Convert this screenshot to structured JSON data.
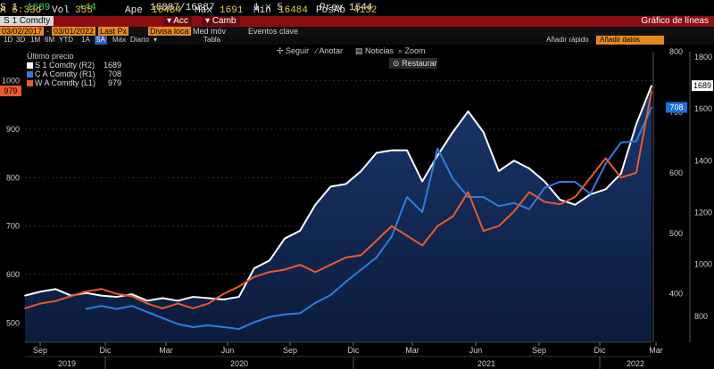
{
  "header": {
    "line1_fragments": [
      "S 1",
      "1689",
      "+44",
      "16887/16887",
      "1 x 5",
      "Prev 1644"
    ],
    "ticker_code": "A 6:33d",
    "vol_label": "Vol",
    "vol_value": "355",
    "open_label": "Ape",
    "open_value": "16484",
    "high_label": "Máx",
    "high_value": "1691",
    "low_label": "Mín",
    "low_value": "16484",
    "posab_label": "PosAb",
    "posab_value": "4132"
  },
  "toolbar_red": {
    "ticker": "S 1 Comdty",
    "acc_label": "Acc",
    "camb_label": "Camb",
    "title": "Gráfico de líneas"
  },
  "date_row": {
    "start": "03/02/2017",
    "end": "03/01/2022",
    "last_px": "Last Px",
    "divisa": "Divisa loca",
    "med_mov": "Med móv",
    "eventos": "Eventos clave"
  },
  "period_row": {
    "periods": [
      "1D",
      "3D",
      "1M",
      "6M",
      "YTD",
      "1A",
      "5A",
      "Máx"
    ],
    "selected": "5A",
    "frequency": "Diario",
    "tabla": "Tabla",
    "quick_add": "Añadir rápido",
    "quick_add_value": "Añadir datos"
  },
  "chart_tools": {
    "follow": "Seguir",
    "annotate": "Anotar",
    "news": "Noticias",
    "zoom": "Zoom",
    "restore": "Restaurar"
  },
  "legend": {
    "title": "Último precio",
    "items": [
      {
        "name": "S 1 Comdty (R2)",
        "value": "1689",
        "color": "#ffffff"
      },
      {
        "name": "C A Comdty (R1)",
        "value": "708",
        "color": "#2f7de1"
      },
      {
        "name": "W A Comdty (L1)",
        "value": "979",
        "color": "#ea5a2b"
      }
    ]
  },
  "chart_data": {
    "type": "line",
    "title": "Gráfico de líneas",
    "x_tick_labels": [
      "Sep",
      "Dic",
      "Mar",
      "Jun",
      "Sep",
      "Dic",
      "Mar",
      "Jun",
      "Sep",
      "Dic",
      "Mar"
    ],
    "year_labels": [
      "2019",
      "2020",
      "2021",
      "2022"
    ],
    "left_axis": {
      "ticks": [
        500,
        600,
        700,
        800,
        900,
        1000
      ],
      "range": [
        460,
        1060
      ],
      "badge": "979",
      "badge_color": "#ea5a2b"
    },
    "right_axis_1": {
      "ticks": [
        400,
        500,
        600,
        700,
        800
      ],
      "range": [
        320,
        800
      ],
      "badge": "708",
      "badge_color": "#1e6fe0"
    },
    "right_axis_2": {
      "ticks": [
        800,
        1000,
        1200,
        1400,
        1600,
        1800
      ],
      "range": [
        700,
        1820
      ],
      "badge": "1689",
      "badge_color": "#ffffff"
    },
    "x_range": [
      0,
      41
    ],
    "series": [
      {
        "name": "S 1 Comdty (R2)",
        "axis": "R2",
        "color": "#ffffff",
        "x": [
          0,
          1,
          2,
          3,
          4,
          5,
          6,
          7,
          8,
          9,
          10,
          11,
          12,
          13,
          14,
          15,
          16,
          17,
          18,
          19,
          20,
          21,
          22,
          23,
          24,
          25,
          26,
          27,
          28,
          29,
          30,
          31,
          32,
          33,
          34,
          35,
          36,
          37,
          38,
          39,
          40,
          41
        ],
        "values": [
          880,
          895,
          905,
          880,
          890,
          880,
          875,
          885,
          860,
          870,
          860,
          875,
          870,
          865,
          875,
          985,
          1015,
          1100,
          1130,
          1230,
          1300,
          1310,
          1360,
          1430,
          1440,
          1440,
          1320,
          1420,
          1510,
          1590,
          1510,
          1360,
          1400,
          1370,
          1320,
          1250,
          1230,
          1270,
          1290,
          1350,
          1540,
          1689
        ]
      },
      {
        "name": "C A Comdty (R1)",
        "axis": "R1",
        "color": "#2f7de1",
        "x": [
          4,
          5,
          6,
          7,
          8,
          9,
          10,
          11,
          12,
          13,
          14,
          15,
          16,
          17,
          18,
          19,
          20,
          21,
          22,
          23,
          24,
          25,
          26,
          27,
          28,
          29,
          30,
          31,
          32,
          33,
          34,
          35,
          36,
          37,
          38,
          39,
          40,
          41
        ],
        "values": [
          375,
          380,
          375,
          380,
          370,
          360,
          350,
          345,
          348,
          345,
          342,
          353,
          362,
          366,
          368,
          385,
          398,
          420,
          440,
          460,
          495,
          560,
          535,
          640,
          590,
          560,
          560,
          545,
          550,
          540,
          575,
          585,
          585,
          565,
          615,
          650,
          652,
          708
        ]
      },
      {
        "name": "W A Comdty (L1)",
        "axis": "L1",
        "color": "#ea5a2b",
        "x": [
          0,
          1,
          2,
          3,
          4,
          5,
          6,
          7,
          8,
          9,
          10,
          11,
          12,
          13,
          14,
          15,
          16,
          17,
          18,
          19,
          20,
          21,
          22,
          23,
          24,
          25,
          26,
          27,
          28,
          29,
          30,
          31,
          32,
          33,
          34,
          35,
          36,
          37,
          38,
          39,
          40,
          41
        ],
        "values": [
          530,
          540,
          545,
          555,
          565,
          570,
          560,
          555,
          540,
          530,
          540,
          530,
          540,
          560,
          575,
          595,
          605,
          610,
          620,
          605,
          620,
          635,
          640,
          670,
          700,
          680,
          660,
          700,
          720,
          770,
          690,
          700,
          730,
          770,
          750,
          745,
          760,
          800,
          840,
          800,
          810,
          979
        ]
      }
    ]
  }
}
